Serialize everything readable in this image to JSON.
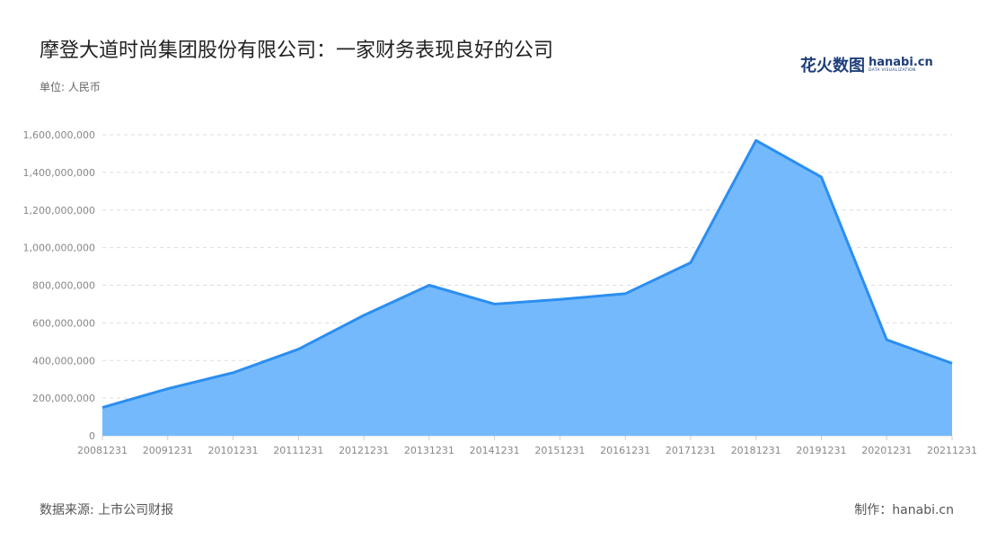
{
  "header": {
    "title": "摩登大道时尚集团股份有限公司：一家财务表现良好的公司",
    "logo_cn": "花火数图",
    "logo_en": "hanabi.cn",
    "logo_sub": "DATA VISUALIZATION"
  },
  "unit_label": "单位: 人民币",
  "footer": {
    "source": "数据来源: 上市公司财报",
    "maker": "制作：hanabi.cn"
  },
  "colors": {
    "line": "#2b8ef0",
    "fill": "#74b9fb",
    "grid": "#dddddd",
    "axis": "#cccccc"
  },
  "chart_data": {
    "type": "area",
    "categories": [
      "20081231",
      "20091231",
      "20101231",
      "20111231",
      "20121231",
      "20131231",
      "20141231",
      "20151231",
      "20161231",
      "20171231",
      "20181231",
      "20191231",
      "20201231",
      "20211231"
    ],
    "values": [
      150000000,
      250000000,
      335000000,
      460000000,
      640000000,
      800000000,
      700000000,
      725000000,
      755000000,
      920000000,
      1570000000,
      1375000000,
      510000000,
      385000000
    ],
    "ylim": [
      0,
      1600000000
    ],
    "yticks": [
      0,
      200000000,
      400000000,
      600000000,
      800000000,
      1000000000,
      1200000000,
      1400000000,
      1600000000
    ],
    "ytick_labels": [
      "0",
      "200,000,000",
      "400,000,000",
      "600,000,000",
      "800,000,000",
      "1,000,000,000",
      "1,200,000,000",
      "1,400,000,000",
      "1,600,000,000"
    ],
    "grid": true
  }
}
